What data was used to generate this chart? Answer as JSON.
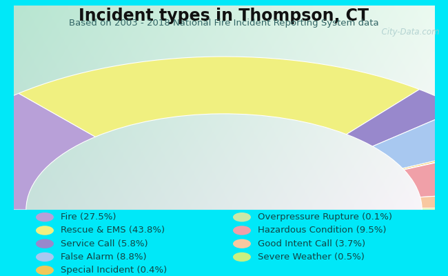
{
  "title": "Incident types in Thompson, CT",
  "subtitle": "Based on 2003 - 2018 National Fire Incident Reporting System data",
  "outer_bg": "#00e8f8",
  "panel_color_tl": "#b8e8d0",
  "panel_color_tr": "#e8f4f0",
  "panel_color_bl": "#c8ecd8",
  "panel_color_br": "#f0f8f4",
  "categories": [
    "Fire",
    "Rescue & EMS",
    "Service Call",
    "False Alarm",
    "Special Incident",
    "Overpressure Rupture",
    "Hazardous Condition",
    "Good Intent Call",
    "Severe Weather"
  ],
  "values": [
    27.5,
    43.8,
    5.8,
    8.8,
    0.4,
    0.1,
    9.5,
    3.7,
    0.5
  ],
  "colors": [
    "#b8a0d8",
    "#f0f080",
    "#9888cc",
    "#a8c8f0",
    "#f0c858",
    "#c8e8a8",
    "#f0a0a8",
    "#f8c8a0",
    "#c8f080"
  ],
  "legend_labels": [
    "Fire (27.5%)",
    "Rescue & EMS (43.8%)",
    "Service Call (5.8%)",
    "False Alarm (8.8%)",
    "Special Incident (0.4%)",
    "Overpressure Rupture (0.1%)",
    "Hazardous Condition (9.5%)",
    "Good Intent Call (3.7%)",
    "Severe Weather (0.5%)"
  ],
  "title_fontsize": 17,
  "subtitle_fontsize": 9.5,
  "legend_fontsize": 9.5,
  "title_color": "#111111",
  "subtitle_color": "#336666",
  "legend_text_color": "#114444",
  "watermark": "  City-Data.com"
}
